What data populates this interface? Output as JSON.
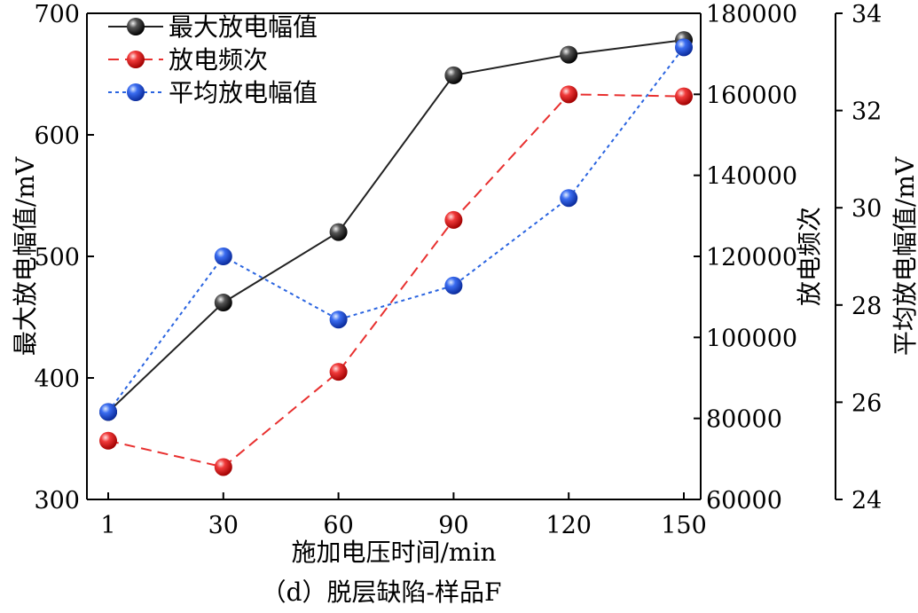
{
  "chart_data": {
    "type": "line",
    "caption": "（d）脱层缺陷-样品F",
    "xlabel": "施加电压时间/min",
    "categories": [
      "1",
      "30",
      "60",
      "90",
      "120",
      "150"
    ],
    "axes": {
      "left": {
        "label": "最大放电幅值/mV",
        "ylim": [
          300,
          700
        ],
        "ticks": [
          300,
          400,
          500,
          600,
          700
        ]
      },
      "right1": {
        "label": "放电频次",
        "ylim": [
          60000,
          180000
        ],
        "ticks": [
          60000,
          80000,
          100000,
          120000,
          140000,
          160000,
          180000
        ]
      },
      "right2": {
        "label": "平均放电幅值/mV",
        "ylim": [
          24,
          34
        ],
        "ticks": [
          24,
          26,
          28,
          30,
          32,
          34
        ]
      }
    },
    "series": [
      {
        "name": "最大放电幅值",
        "axis": "left",
        "color": "#222222",
        "style": "solid",
        "values": [
          372,
          462,
          520,
          649,
          666,
          678
        ]
      },
      {
        "name": "放电频次",
        "axis": "right1",
        "color": "#e8302f",
        "style": "dashed",
        "values": [
          74500,
          68000,
          91500,
          129000,
          160000,
          159500
        ]
      },
      {
        "name": "平均放电幅值",
        "axis": "right2",
        "color": "#2a64e0",
        "style": "dotted",
        "values": [
          25.8,
          29.0,
          27.7,
          28.4,
          30.2,
          33.3
        ]
      }
    ],
    "legend_position": "top-left",
    "grid": false
  }
}
